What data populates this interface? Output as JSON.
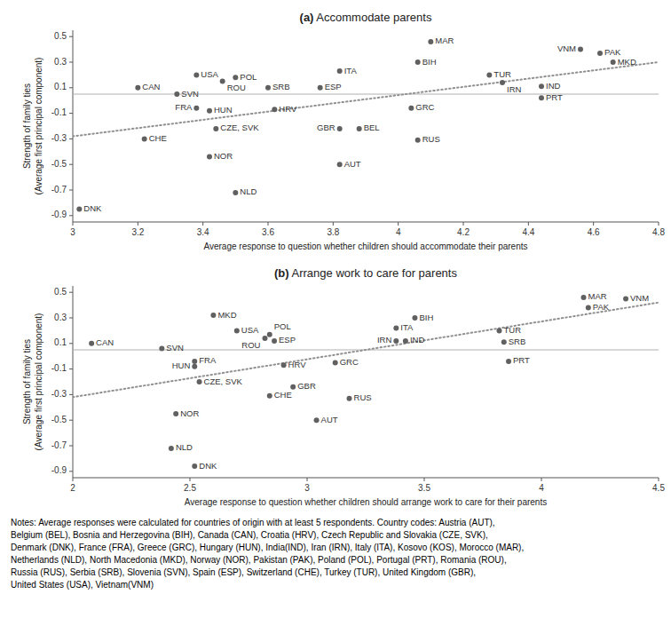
{
  "chart_data": [
    {
      "type": "scatter",
      "title": "(a) Accommodate parents",
      "x_label": "Average response to question whether children should accommodate their parents",
      "y_label": "Strength of family ties\n(Average first principal component)",
      "xlim": [
        3.0,
        4.8
      ],
      "ylim": [
        -0.95,
        0.55
      ],
      "xticks": [
        3,
        3.2,
        3.4,
        3.6,
        3.8,
        4,
        4.2,
        4.4,
        4.6,
        4.8
      ],
      "yticks": [
        -0.9,
        -0.7,
        -0.5,
        -0.3,
        -0.1,
        0.1,
        0.3,
        0.5
      ],
      "grid": false,
      "color": "#606060",
      "marker": "circle",
      "labels": [
        "DNK",
        "CAN",
        "CHE",
        "SVN",
        "FRA",
        "HUN",
        "NOR",
        "USA",
        "ROU",
        "POL",
        "CZE, SVK",
        "NLD",
        "SRB",
        "HRV",
        "ESP",
        "GBR",
        "BEL",
        "ITA",
        "AUT",
        "GRC",
        "RUS",
        "BIH",
        "MAR",
        "TUR",
        "IRN",
        "IND",
        "PRT",
        "VNM",
        "PAK",
        "MKD"
      ],
      "x": [
        3.02,
        3.2,
        3.22,
        3.32,
        3.38,
        3.42,
        3.42,
        3.38,
        3.46,
        3.5,
        3.44,
        3.5,
        3.6,
        3.62,
        3.76,
        3.82,
        3.88,
        3.82,
        3.82,
        4.04,
        4.06,
        4.06,
        4.1,
        4.28,
        4.32,
        4.44,
        4.44,
        4.56,
        4.62,
        4.66
      ],
      "values": [
        -0.85,
        0.1,
        -0.3,
        0.05,
        -0.06,
        -0.08,
        -0.44,
        0.2,
        0.15,
        0.18,
        -0.22,
        -0.72,
        0.1,
        -0.07,
        0.1,
        -0.22,
        -0.22,
        0.23,
        -0.5,
        -0.06,
        -0.31,
        0.3,
        0.46,
        0.2,
        0.14,
        0.11,
        0.02,
        0.4,
        0.37,
        0.3
      ],
      "trend": {
        "x": [
          3.0,
          4.8
        ],
        "values": [
          -0.28,
          0.3
        ],
        "color": "#909090",
        "line_style": "dotted"
      },
      "hline": {
        "value": 0.05,
        "color": "#b0b0b0",
        "line_style": "solid"
      }
    },
    {
      "type": "scatter",
      "title": "(b) Arrange work to care for parents",
      "x_label": "Average response to question whether children should arrange work to care for their parents",
      "y_label": "Strength of family ties\n(Average first principal component)",
      "xlim": [
        2.0,
        4.5
      ],
      "ylim": [
        -0.95,
        0.55
      ],
      "xticks": [
        2,
        2.5,
        3,
        3.5,
        4,
        4.5
      ],
      "yticks": [
        -0.9,
        -0.7,
        -0.5,
        -0.3,
        -0.1,
        0.1,
        0.3,
        0.5
      ],
      "grid": false,
      "color": "#606060",
      "marker": "circle",
      "labels": [
        "CAN",
        "SVN",
        "FRA",
        "HUN",
        "CZE, SVK",
        "NOR",
        "NLD",
        "DNK",
        "MKD",
        "USA",
        "ROU",
        "POL",
        "ESP",
        "CHE",
        "HRV",
        "GBR",
        "AUT",
        "GRC",
        "RUS",
        "ITA",
        "IRN",
        "IND",
        "BIH",
        "TUR",
        "SRB",
        "PRT",
        "MAR",
        "PAK",
        "VNM"
      ],
      "x": [
        2.08,
        2.38,
        2.52,
        2.52,
        2.54,
        2.44,
        2.42,
        2.52,
        2.6,
        2.7,
        2.82,
        2.84,
        2.86,
        2.84,
        2.9,
        2.94,
        3.04,
        3.12,
        3.18,
        3.38,
        3.38,
        3.42,
        3.46,
        3.82,
        3.84,
        3.86,
        4.18,
        4.2,
        4.36
      ],
      "values": [
        0.1,
        0.06,
        -0.04,
        -0.08,
        -0.2,
        -0.45,
        -0.72,
        -0.86,
        0.32,
        0.2,
        0.14,
        0.17,
        0.12,
        -0.31,
        -0.07,
        -0.24,
        -0.5,
        -0.05,
        -0.33,
        0.22,
        0.12,
        0.12,
        0.3,
        0.2,
        0.11,
        -0.04,
        0.46,
        0.38,
        0.45
      ],
      "trend": {
        "x": [
          2.0,
          4.5
        ],
        "values": [
          -0.32,
          0.42
        ],
        "color": "#909090",
        "line_style": "dotted"
      },
      "hline": {
        "value": 0.05,
        "color": "#b0b0b0",
        "line_style": "solid"
      },
      "annotations": [
        "Notes: Average responses were calculated for countries of origin with at least 5 respondents. Country codes: Austria (AUT),",
        "Belgium (BEL), Bosnia and Herzegovina (BIH), Canada (CAN), Croatia (HRV), Czech Republic and Slovakia (CZE, SVK),",
        "Denmark (DNK), France (FRA), Greece (GRC), Hungary (HUN), India(IND), Iran (IRN), Italy (ITA), Kosovo (KOS), Morocco (MAR),",
        "Netherlands (NLD), North Macedonia (MKD), Norway (NOR), Pakistan (PAK), Poland (POL), Portugal (PRT), Romania (ROU),",
        "Russia (RUS), Serbia (SRB), Slovenia (SVN), Spain (ESP), Switzerland (CHE), Turkey (TUR), United Kingdom (GBR),",
        "United States (USA), Vietnam(VNM)"
      ]
    }
  ]
}
